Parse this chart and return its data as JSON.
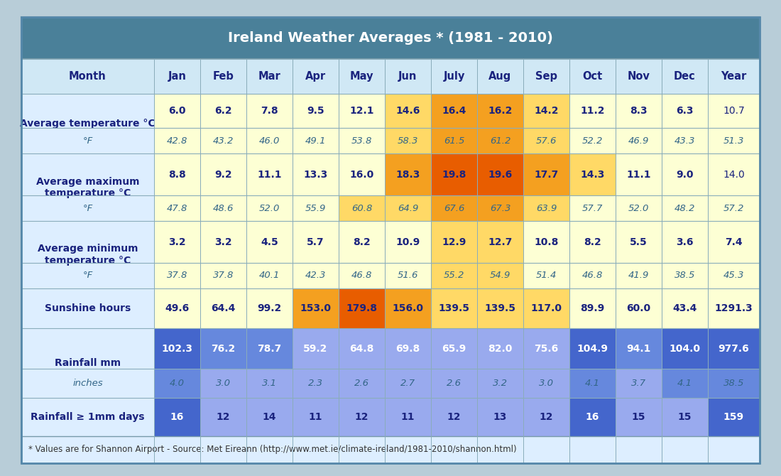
{
  "title": "Ireland Weather Averages * (1981 - 2010)",
  "footer": "* Values are for Shannon Airport - Source: Met Eireann (http://www.met.ie/climate-ireland/1981-2010/shannon.html)",
  "columns": [
    "Month",
    "Jan",
    "Feb",
    "Mar",
    "Apr",
    "May",
    "Jun",
    "July",
    "Aug",
    "Sep",
    "Oct",
    "Nov",
    "Dec",
    "Year"
  ],
  "rows": [
    {
      "label": "Average temperature °C",
      "label2": "°F",
      "values_c": [
        "6.0",
        "6.2",
        "7.8",
        "9.5",
        "12.1",
        "14.6",
        "16.4",
        "16.2",
        "14.2",
        "11.2",
        "8.3",
        "6.3",
        "10.7"
      ],
      "values_f": [
        "42.8",
        "43.2",
        "46.0",
        "49.1",
        "53.8",
        "58.3",
        "61.5",
        "61.2",
        "57.6",
        "52.2",
        "46.9",
        "43.3",
        "51.3"
      ],
      "colors_c": [
        "#fdffd4",
        "#fdffd4",
        "#fdffd4",
        "#fdffd4",
        "#fdffd4",
        "#ffd966",
        "#f4a020",
        "#f4a020",
        "#ffd966",
        "#fdffd4",
        "#fdffd4",
        "#fdffd4",
        "#fdffd4"
      ],
      "colors_f": [
        "#fdffd4",
        "#fdffd4",
        "#fdffd4",
        "#fdffd4",
        "#fdffd4",
        "#ffd966",
        "#f4a020",
        "#f4a020",
        "#ffd966",
        "#fdffd4",
        "#fdffd4",
        "#fdffd4",
        "#fdffd4"
      ],
      "bold_year": false
    },
    {
      "label": "Average maximum\ntemperature °C",
      "label2": "°F",
      "values_c": [
        "8.8",
        "9.2",
        "11.1",
        "13.3",
        "16.0",
        "18.3",
        "19.8",
        "19.6",
        "17.7",
        "14.3",
        "11.1",
        "9.0",
        "14.0"
      ],
      "values_f": [
        "47.8",
        "48.6",
        "52.0",
        "55.9",
        "60.8",
        "64.9",
        "67.6",
        "67.3",
        "63.9",
        "57.7",
        "52.0",
        "48.2",
        "57.2"
      ],
      "colors_c": [
        "#fdffd4",
        "#fdffd4",
        "#fdffd4",
        "#fdffd4",
        "#fdffd4",
        "#f4a020",
        "#e85d00",
        "#e85d00",
        "#f4a020",
        "#ffd966",
        "#fdffd4",
        "#fdffd4",
        "#fdffd4"
      ],
      "colors_f": [
        "#fdffd4",
        "#fdffd4",
        "#fdffd4",
        "#fdffd4",
        "#ffd966",
        "#ffd966",
        "#f4a020",
        "#f4a020",
        "#ffd966",
        "#fdffd4",
        "#fdffd4",
        "#fdffd4",
        "#fdffd4"
      ],
      "bold_year": false
    },
    {
      "label": "Average minimum\ntemperature °C",
      "label2": "°F",
      "values_c": [
        "3.2",
        "3.2",
        "4.5",
        "5.7",
        "8.2",
        "10.9",
        "12.9",
        "12.7",
        "10.8",
        "8.2",
        "5.5",
        "3.6",
        "7.4"
      ],
      "values_f": [
        "37.8",
        "37.8",
        "40.1",
        "42.3",
        "46.8",
        "51.6",
        "55.2",
        "54.9",
        "51.4",
        "46.8",
        "41.9",
        "38.5",
        "45.3"
      ],
      "colors_c": [
        "#fdffd4",
        "#fdffd4",
        "#fdffd4",
        "#fdffd4",
        "#fdffd4",
        "#fdffd4",
        "#ffd966",
        "#ffd966",
        "#fdffd4",
        "#fdffd4",
        "#fdffd4",
        "#fdffd4",
        "#fdffd4"
      ],
      "colors_f": [
        "#fdffd4",
        "#fdffd4",
        "#fdffd4",
        "#fdffd4",
        "#fdffd4",
        "#fdffd4",
        "#ffd966",
        "#ffd966",
        "#fdffd4",
        "#fdffd4",
        "#fdffd4",
        "#fdffd4",
        "#fdffd4"
      ],
      "bold_year": true
    },
    {
      "label": "Sunshine hours",
      "label2": null,
      "values_c": [
        "49.6",
        "64.4",
        "99.2",
        "153.0",
        "179.8",
        "156.0",
        "139.5",
        "139.5",
        "117.0",
        "89.9",
        "60.0",
        "43.4",
        "1291.3"
      ],
      "values_f": null,
      "colors_c": [
        "#fdffd4",
        "#fdffd4",
        "#fdffd4",
        "#f4a020",
        "#e85d00",
        "#f4a020",
        "#ffd966",
        "#ffd966",
        "#ffd966",
        "#fdffd4",
        "#fdffd4",
        "#fdffd4",
        "#fdffd4"
      ],
      "colors_f": null,
      "bold_year": true
    },
    {
      "label": "Rainfall mm",
      "label2": "inches",
      "values_c": [
        "102.3",
        "76.2",
        "78.7",
        "59.2",
        "64.8",
        "69.8",
        "65.9",
        "82.0",
        "75.6",
        "104.9",
        "94.1",
        "104.0",
        "977.6"
      ],
      "values_f": [
        "4.0",
        "3.0",
        "3.1",
        "2.3",
        "2.6",
        "2.7",
        "2.6",
        "3.2",
        "3.0",
        "4.1",
        "3.7",
        "4.1",
        "38.5"
      ],
      "colors_c": [
        "#4466cc",
        "#6688dd",
        "#6688dd",
        "#99aaee",
        "#99aaee",
        "#99aaee",
        "#99aaee",
        "#99aaee",
        "#99aaee",
        "#4466cc",
        "#6688dd",
        "#4466cc",
        "#4466cc"
      ],
      "colors_f": [
        "#6688dd",
        "#99aaee",
        "#99aaee",
        "#99aaee",
        "#99aaee",
        "#99aaee",
        "#99aaee",
        "#99aaee",
        "#99aaee",
        "#6688dd",
        "#99aaee",
        "#6688dd",
        "#6688dd"
      ],
      "bold_year": true
    },
    {
      "label": "Rainfall ≥ 1mm days",
      "label2": null,
      "values_c": [
        "16",
        "12",
        "14",
        "11",
        "12",
        "11",
        "12",
        "13",
        "12",
        "16",
        "15",
        "15",
        "159"
      ],
      "values_f": null,
      "colors_c": [
        "#4466cc",
        "#99aaee",
        "#99aaee",
        "#99aaee",
        "#99aaee",
        "#99aaee",
        "#99aaee",
        "#99aaee",
        "#99aaee",
        "#4466cc",
        "#99aaee",
        "#99aaee",
        "#4466cc"
      ],
      "colors_f": null,
      "bold_year": true
    }
  ],
  "title_bg": "#4a8099",
  "title_text": "#ffffff",
  "col_header_bg": "#d0e8f5",
  "col_header_text": "#1a237e",
  "row_label_bg": "#ddeeff",
  "row_label_text": "#1a237e",
  "footer_bg": "#ddeeff",
  "outer_bg": "#ddeeff",
  "bg_color": "#b8cdd8",
  "value_text_dark": "#1a237e",
  "value_text_white": "#ffffff",
  "italic_color": "#336688"
}
